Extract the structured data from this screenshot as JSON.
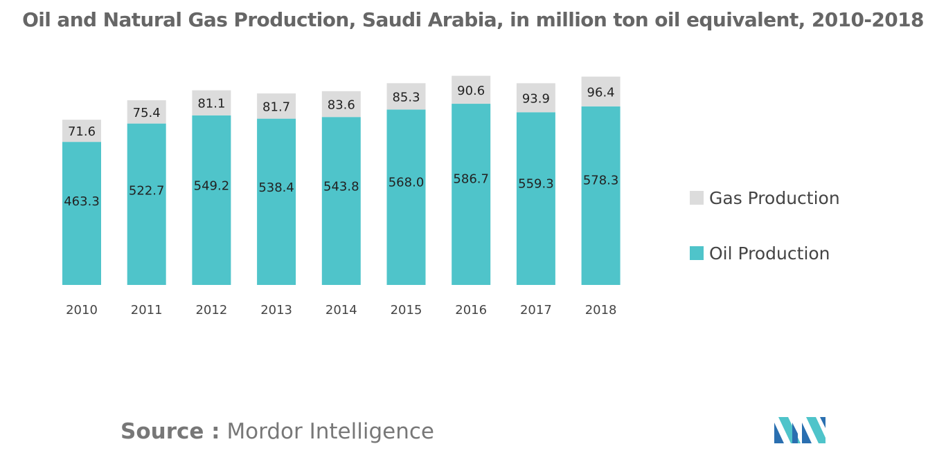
{
  "title": "Oil and Natural Gas Production, Saudi Arabia, in million ton oil equivalent, 2010-2018",
  "source": {
    "label": "Source :",
    "value": "Mordor Intelligence"
  },
  "colors": {
    "oil": "#4fc4ca",
    "gas": "#dcdcdc",
    "text": "#222222",
    "axis_text": "#444444"
  },
  "icons": {
    "logo": "mordor-intelligence-logo-icon"
  },
  "chart_data": {
    "type": "bar",
    "stacked": true,
    "title": "Oil and Natural Gas Production, Saudi Arabia, in million ton oil equivalent, 2010-2018",
    "categories": [
      "2010",
      "2011",
      "2012",
      "2013",
      "2014",
      "2015",
      "2016",
      "2017",
      "2018"
    ],
    "series": [
      {
        "name": "Oil Production",
        "values": [
          463.3,
          522.7,
          549.2,
          538.4,
          543.8,
          568.0,
          586.7,
          559.3,
          578.3
        ],
        "labels": [
          "463.3",
          "522.7",
          "549.2",
          "538.4",
          "543.8",
          "568.0",
          "586.7",
          "559.3",
          "578.3"
        ]
      },
      {
        "name": "Gas Production",
        "values": [
          71.6,
          75.4,
          81.1,
          81.7,
          83.6,
          85.3,
          90.6,
          93.9,
          96.4
        ],
        "labels": [
          "71.6",
          "75.4",
          "81.1",
          "81.7",
          "83.6",
          "85.3",
          "90.6",
          "93.9",
          "96.4"
        ]
      }
    ],
    "legend": {
      "position": "right",
      "order": [
        "Gas Production",
        "Oil Production"
      ]
    },
    "grid": false,
    "y_axis_visible": false,
    "ylim": [
      0,
      700
    ]
  }
}
